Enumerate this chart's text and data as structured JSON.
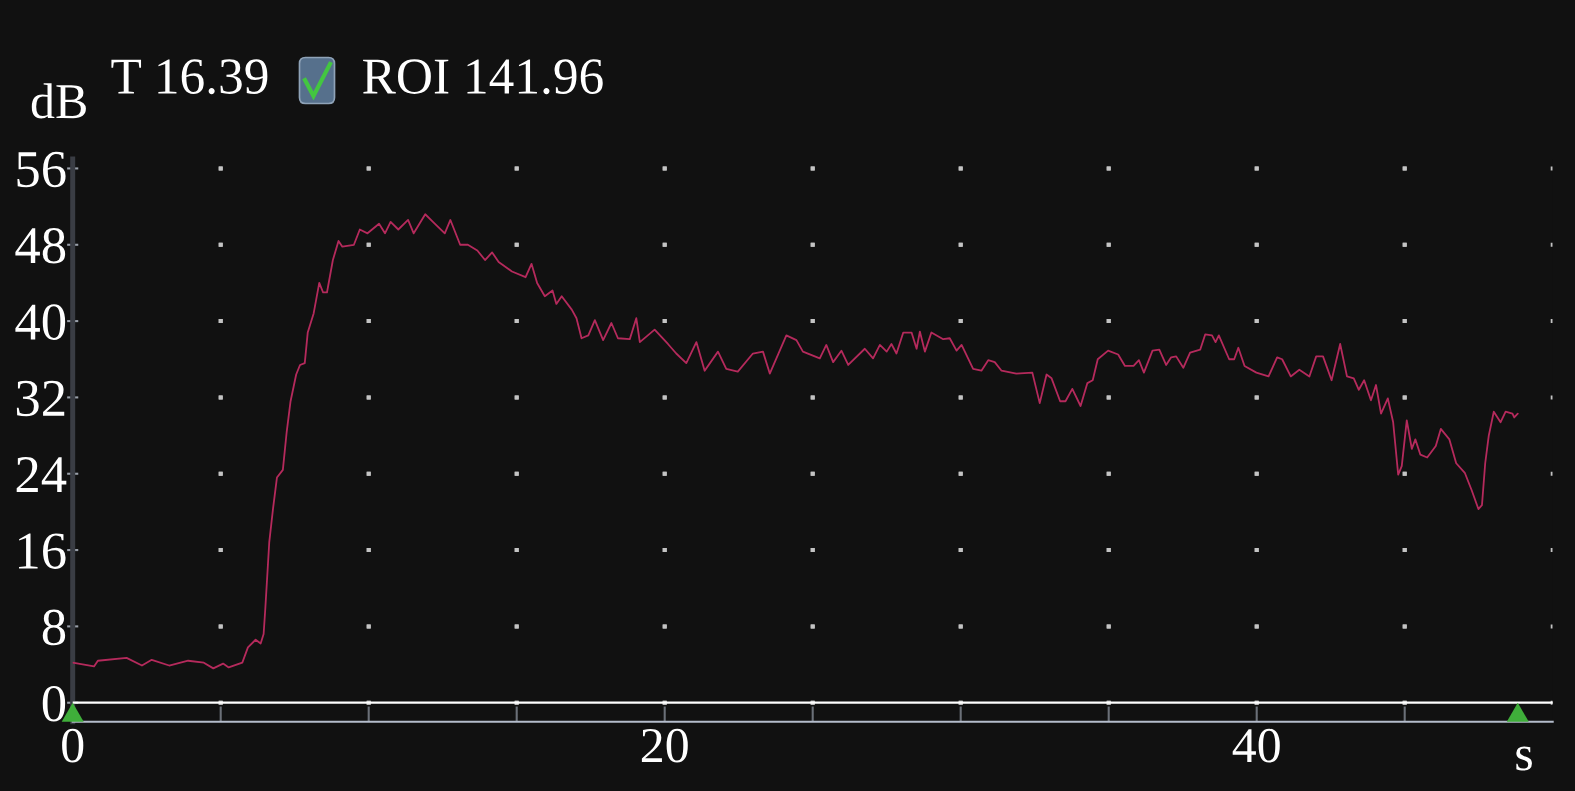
{
  "chart_data": {
    "type": "line",
    "xlabel": "s",
    "ylabel": "dB",
    "annotations": [
      "T 16.39",
      "ROI 141.96"
    ],
    "x": [
      0,
      0.72,
      0.85,
      1.82,
      2.34,
      2.67,
      3.26,
      3.9,
      4.43,
      4.75,
      5.08,
      5.27,
      5.73,
      5.92,
      6.18,
      6.35,
      6.45,
      6.51,
      6.64,
      6.77,
      6.9,
      7.1,
      7.23,
      7.36,
      7.55,
      7.68,
      7.84,
      7.94,
      8.14,
      8.33,
      8.46,
      8.59,
      8.79,
      8.98,
      9.11,
      9.5,
      9.7,
      9.96,
      10.35,
      10.55,
      10.74,
      11.0,
      11.33,
      11.52,
      11.91,
      12.17,
      12.57,
      12.76,
      13.09,
      13.35,
      13.67,
      13.93,
      14.17,
      14.39,
      14.84,
      15.3,
      15.5,
      15.69,
      15.95,
      16.21,
      16.34,
      16.52,
      16.86,
      17.02,
      17.19,
      17.42,
      17.64,
      17.92,
      18.2,
      18.42,
      18.82,
      19.04,
      19.16,
      19.66,
      20.11,
      20.39,
      20.73,
      21.07,
      21.35,
      21.8,
      22.08,
      22.47,
      22.98,
      23.32,
      23.55,
      24.11,
      24.45,
      24.67,
      25.24,
      25.46,
      25.69,
      25.97,
      26.2,
      26.76,
      27.04,
      27.27,
      27.5,
      27.66,
      27.83,
      28.06,
      28.34,
      28.51,
      28.62,
      28.79,
      29.01,
      29.41,
      29.63,
      29.86,
      30.03,
      30.42,
      30.7,
      30.93,
      31.15,
      31.38,
      31.88,
      32.42,
      32.67,
      32.9,
      33.07,
      33.36,
      33.54,
      33.77,
      34.05,
      34.28,
      34.46,
      34.63,
      34.98,
      35.32,
      35.55,
      35.84,
      36.02,
      36.19,
      36.48,
      36.71,
      36.94,
      37.11,
      37.28,
      37.52,
      37.75,
      38.09,
      38.26,
      38.49,
      38.61,
      38.72,
      39.07,
      39.24,
      39.38,
      39.59,
      39.99,
      40.4,
      40.69,
      40.86,
      41.15,
      41.44,
      41.78,
      42.01,
      42.24,
      42.53,
      42.82,
      43.05,
      43.28,
      43.45,
      43.63,
      43.86,
      44.03,
      44.2,
      44.43,
      44.61,
      44.78,
      44.9,
      45.07,
      45.24,
      45.36,
      45.53,
      45.76,
      46.05,
      46.22,
      46.51,
      46.74,
      47.03,
      47.26,
      47.49,
      47.61,
      47.72,
      47.84,
      48.01,
      48.24,
      48.41,
      48.64,
      48.7,
      48.82
    ],
    "series": [
      {
        "color": "#b52a5c",
        "values": [
          4.2,
          3.8,
          4.4,
          4.7,
          3.9,
          4.5,
          3.9,
          4.4,
          4.2,
          3.6,
          4.1,
          3.7,
          4.2,
          5.8,
          6.6,
          6.2,
          7.2,
          10.0,
          16.8,
          20.4,
          23.6,
          24.4,
          28.4,
          31.6,
          34.4,
          35.4,
          35.6,
          38.8,
          40.8,
          44.0,
          43.0,
          43.0,
          46.4,
          48.4,
          47.8,
          48.0,
          49.6,
          49.2,
          50.2,
          49.2,
          50.4,
          49.6,
          50.6,
          49.2,
          51.2,
          50.4,
          49.2,
          50.6,
          48.0,
          48.0,
          47.4,
          46.4,
          47.2,
          46.2,
          45.2,
          44.6,
          46.0,
          44.0,
          42.6,
          43.2,
          41.8,
          42.6,
          41.2,
          40.3,
          38.2,
          38.5,
          40.1,
          38.0,
          39.8,
          38.2,
          38.1,
          40.3,
          37.8,
          39.1,
          37.6,
          36.6,
          35.6,
          37.8,
          34.8,
          36.8,
          35.0,
          34.7,
          36.6,
          36.8,
          34.5,
          38.5,
          38.0,
          36.8,
          36.1,
          37.5,
          35.7,
          36.9,
          35.4,
          37.1,
          36.1,
          37.5,
          36.8,
          37.6,
          36.6,
          38.8,
          38.8,
          37.1,
          38.9,
          36.8,
          38.8,
          38.1,
          38.2,
          36.9,
          37.5,
          35.0,
          34.8,
          35.9,
          35.7,
          34.8,
          34.5,
          34.6,
          31.4,
          34.4,
          34.0,
          31.6,
          31.6,
          32.9,
          31.1,
          33.5,
          33.8,
          36.0,
          36.9,
          36.5,
          35.3,
          35.3,
          35.9,
          34.6,
          36.9,
          37.0,
          35.4,
          36.2,
          36.3,
          35.1,
          36.7,
          37.0,
          38.6,
          38.5,
          37.8,
          38.5,
          36.0,
          36.0,
          37.2,
          35.3,
          34.6,
          34.2,
          36.2,
          36.0,
          34.2,
          34.9,
          34.2,
          36.3,
          36.3,
          33.8,
          37.6,
          34.2,
          34.0,
          32.8,
          33.8,
          31.7,
          33.3,
          30.3,
          31.9,
          29.4,
          23.9,
          24.8,
          29.6,
          26.6,
          27.6,
          26.0,
          25.7,
          26.9,
          28.7,
          27.6,
          25.1,
          24.1,
          22.3,
          20.3,
          20.7,
          25.1,
          28.0,
          30.5,
          29.4,
          30.5,
          30.3,
          29.9,
          30.3
        ]
      }
    ],
    "xlim": [
      0,
      50
    ],
    "ylim": [
      -2,
      57
    ],
    "xticks": [
      0,
      {
        "value": 5,
        "label": null
      },
      {
        "value": 10,
        "label": null
      },
      {
        "value": 15,
        "label": null
      },
      20,
      {
        "value": 25,
        "label": null
      },
      {
        "value": 30,
        "label": null
      },
      {
        "value": 35,
        "label": null
      },
      40,
      {
        "value": 45,
        "label": null
      }
    ],
    "yticks": [
      0,
      8,
      16,
      24,
      32,
      40,
      48,
      56
    ],
    "grid": true,
    "line_style": "solid",
    "ref_lines": [
      {
        "axis": "y",
        "value": 0,
        "color": "#ffffff"
      }
    ]
  }
}
